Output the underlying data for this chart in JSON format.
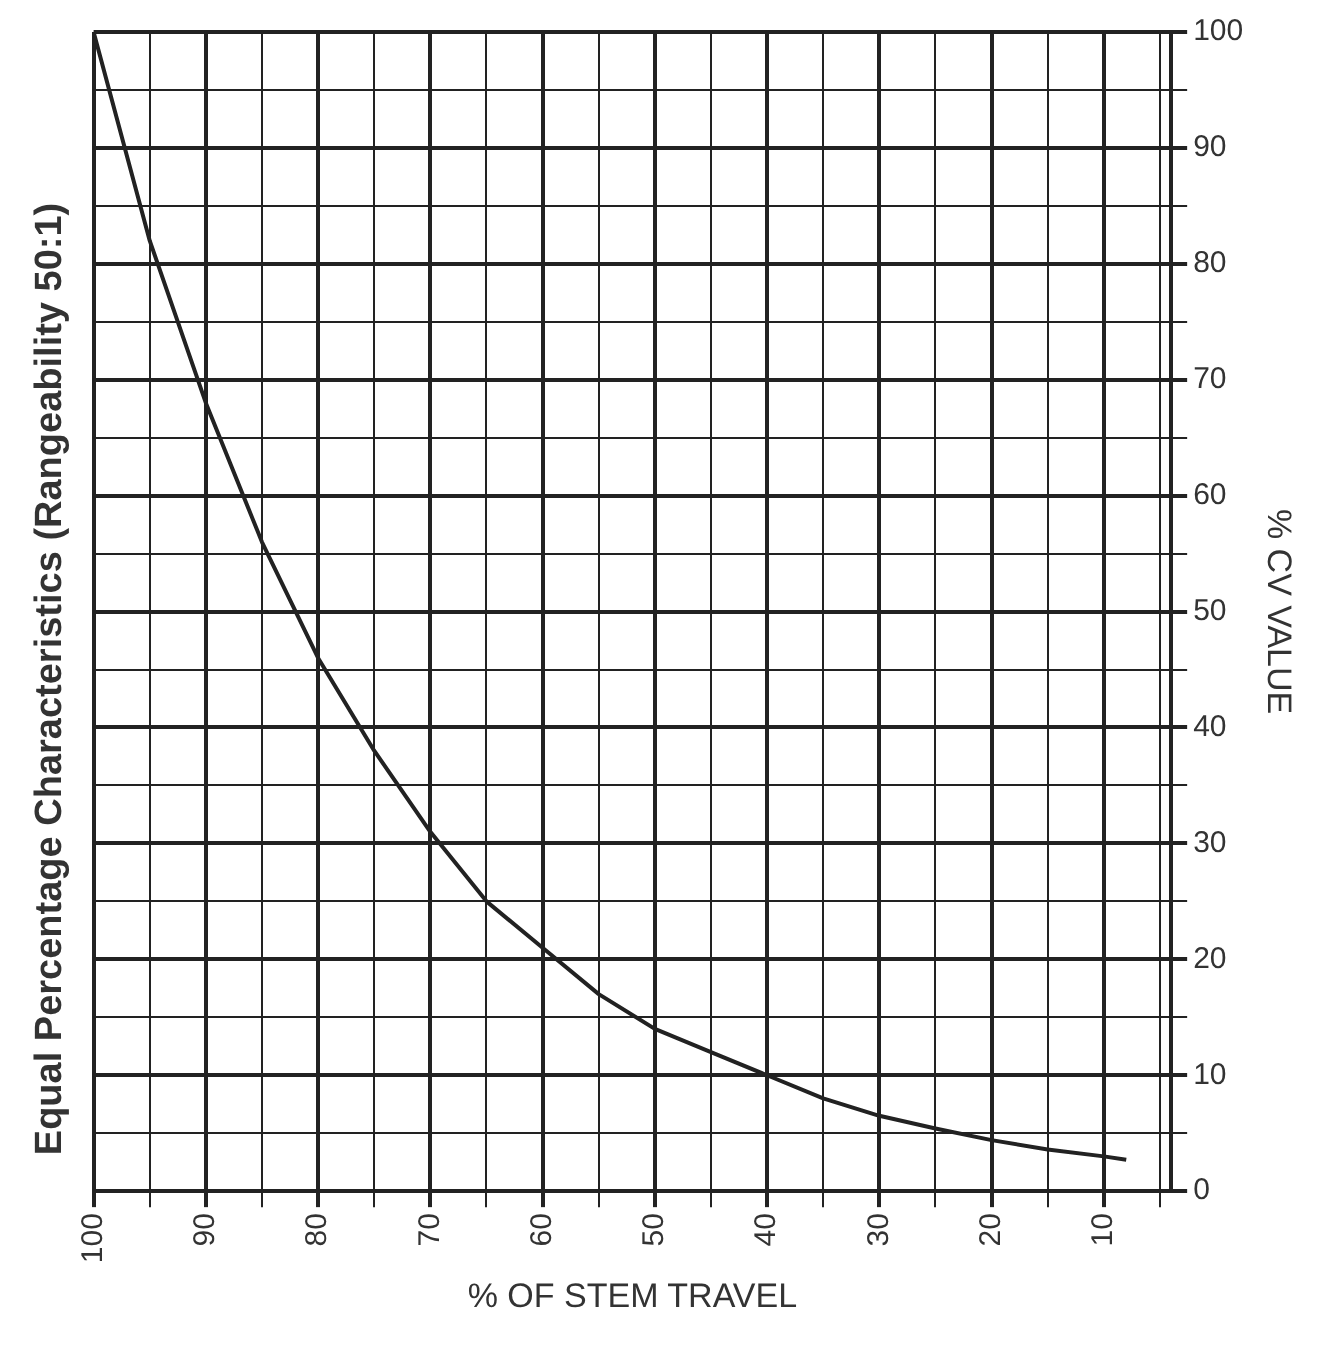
{
  "chart_data": {
    "type": "line",
    "title": "Equal Percentage Characteristics (Rangeability 50:1)",
    "xlabel": "% OF STEM TRAVEL",
    "ylabel": "% CV VALUE",
    "x": [
      100,
      95,
      90,
      85,
      80,
      75,
      70,
      65,
      60,
      55,
      50,
      45,
      40,
      35,
      30,
      25,
      20,
      15,
      10,
      8
    ],
    "series": [
      {
        "color": "#222222",
        "values": [
          100,
          82,
          68,
          56,
          46,
          38,
          31,
          25,
          21,
          17,
          14,
          12,
          10,
          8,
          6.5,
          5.4,
          4.4,
          3.6,
          3,
          2.7
        ]
      }
    ],
    "xlim": [
      100,
      4
    ],
    "ylim": [
      0,
      100
    ],
    "xticks": [
      100,
      {
        "value": 95,
        "label": null
      },
      90,
      {
        "value": 85,
        "label": null
      },
      80,
      {
        "value": 75,
        "label": null
      },
      70,
      {
        "value": 65,
        "label": null
      },
      60,
      {
        "value": 55,
        "label": null
      },
      50,
      {
        "value": 45,
        "label": null
      },
      40,
      {
        "value": 35,
        "label": null
      },
      30,
      {
        "value": 25,
        "label": null
      },
      20,
      {
        "value": 15,
        "label": null
      },
      10,
      {
        "value": 5,
        "label": null
      }
    ],
    "yticks": [
      0,
      {
        "value": 5,
        "label": null
      },
      10,
      {
        "value": 15,
        "label": null
      },
      20,
      {
        "value": 25,
        "label": null
      },
      30,
      {
        "value": 35,
        "label": null
      },
      40,
      {
        "value": 45,
        "label": null
      },
      50,
      {
        "value": 55,
        "label": null
      },
      60,
      {
        "value": 65,
        "label": null
      },
      70,
      {
        "value": 75,
        "label": null
      },
      80,
      {
        "value": 85,
        "label": null
      },
      90,
      {
        "value": 95,
        "label": null
      },
      100
    ],
    "grid": true,
    "legend": false,
    "marker": "none",
    "line_style": "solid"
  }
}
